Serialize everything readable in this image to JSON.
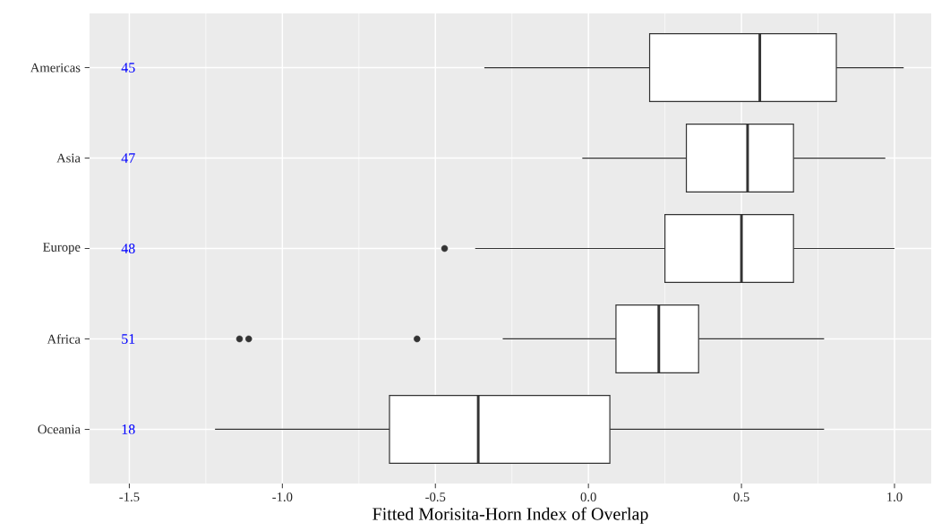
{
  "chart_data": {
    "type": "box",
    "orientation": "horizontal",
    "xlabel": "Fitted Morisita-Horn Index of Overlap",
    "categories": [
      "Americas",
      "Asia",
      "Europe",
      "Africa",
      "Oceania"
    ],
    "boxes": [
      {
        "low": -0.34,
        "q1": 0.2,
        "median": 0.56,
        "q3": 0.81,
        "high": 1.03
      },
      {
        "low": -0.02,
        "q1": 0.32,
        "median": 0.52,
        "q3": 0.67,
        "high": 0.97
      },
      {
        "low": -0.37,
        "q1": 0.25,
        "median": 0.5,
        "q3": 0.67,
        "high": 1.0,
        "outliers": [
          -0.47
        ]
      },
      {
        "low": -0.28,
        "q1": 0.09,
        "median": 0.23,
        "q3": 0.36,
        "high": 0.77,
        "outliers": [
          -1.14,
          -1.11,
          -0.56
        ]
      },
      {
        "low": -1.22,
        "q1": -0.65,
        "median": -0.36,
        "q3": 0.07,
        "high": 0.77
      }
    ],
    "color": "#333333",
    "xlim": [
      -1.63,
      1.12
    ],
    "xticks": [
      {
        "value": -1.5,
        "label": "-1.5"
      },
      {
        "value": -1.0,
        "label": "-1.0"
      },
      {
        "value": -0.5,
        "label": "-0.5"
      },
      {
        "value": 0.0,
        "label": "0.0"
      },
      {
        "value": 0.5,
        "label": "0.5"
      },
      {
        "value": 1.0,
        "label": "1.0"
      }
    ],
    "grid": true,
    "annotations": [
      "45",
      "47",
      "48",
      "51",
      "18"
    ]
  }
}
